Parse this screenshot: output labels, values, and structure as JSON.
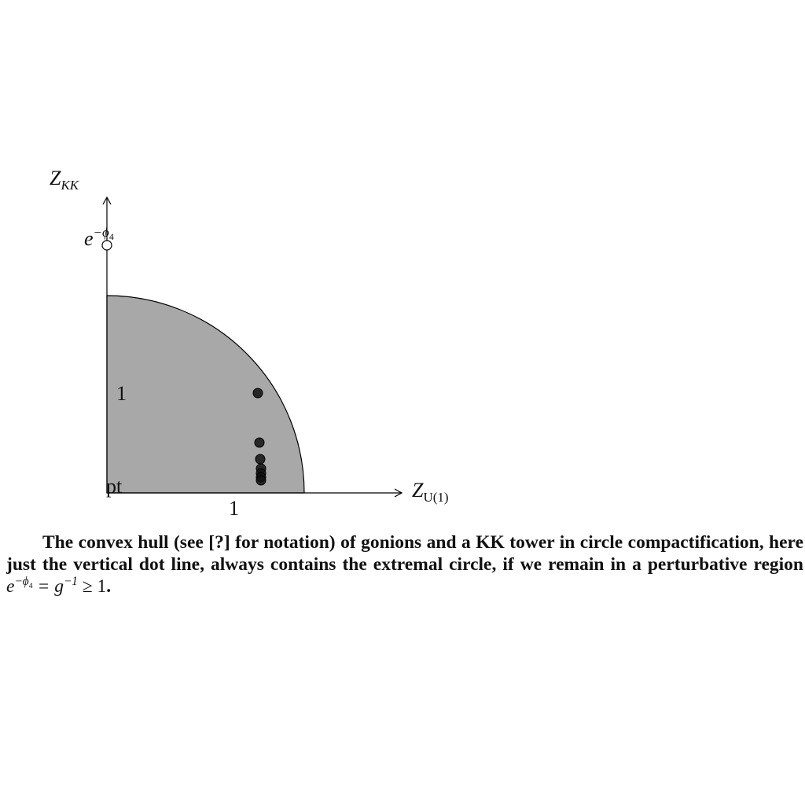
{
  "figure": {
    "y_axis_label": {
      "base": "Z",
      "sub": "KK"
    },
    "x_axis_label": {
      "base": "Z",
      "sub": "U(1)"
    },
    "kk_point_label": {
      "base": "e",
      "sup": "−ϕ",
      "sup_sub": "4"
    },
    "y_unit_label": "1",
    "x_unit_label": "1",
    "origin_label": "pt"
  },
  "caption": {
    "text": "The convex hull (see [?] for notation) of gonions and a KK tower in circle compactification, here just the vertical dot line, always contains the extremal circle, if we remain in a perturbative region ",
    "formula": {
      "base1": "e",
      "sup1": "−ϕ",
      "sup1_sub": "4",
      "mid": " = g",
      "sup2": "−1",
      "end": " ≥ 1"
    },
    "end": "."
  }
}
